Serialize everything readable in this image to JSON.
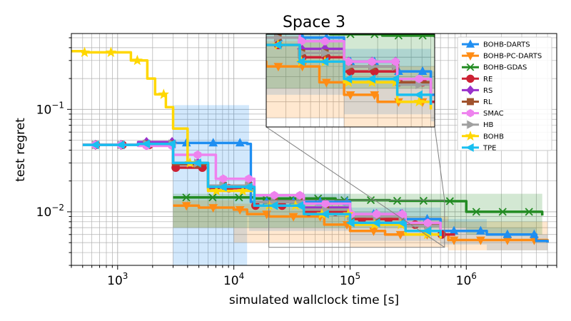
{
  "chart_data": {
    "type": "line",
    "title": "Space 3",
    "xlabel": "simulated wallclock time [s]",
    "ylabel": "test regret",
    "xscale": "log",
    "yscale": "log",
    "xlim": [
      400,
      6000000
    ],
    "ylim": [
      0.003,
      0.55
    ],
    "grid": "both-major-and-minor",
    "legend_position": "top-right",
    "xticks": [
      {
        "value": 1000,
        "base": "10",
        "exp": "3"
      },
      {
        "value": 10000,
        "base": "10",
        "exp": "4"
      },
      {
        "value": 100000,
        "base": "10",
        "exp": "5"
      },
      {
        "value": 1000000,
        "base": "10",
        "exp": "6"
      }
    ],
    "yticks": [
      {
        "value": 0.1,
        "base": "10",
        "exp": "−1"
      },
      {
        "value": 0.01,
        "base": "10",
        "exp": "−2"
      }
    ],
    "inset": {
      "description": "zoomed view",
      "xlim": [
        20000,
        650000
      ],
      "ylim": [
        0.0045,
        0.013
      ]
    },
    "series": [
      {
        "name": "BOHB-DARTS",
        "color": "#1f8ef1",
        "marker": "triangle-up",
        "x": [
          3000,
          10000,
          13000,
          14000,
          100000,
          300000,
          600000,
          1500000,
          4000000,
          5000000
        ],
        "y": [
          0.047,
          0.047,
          0.046,
          0.0125,
          0.0095,
          0.0085,
          0.0065,
          0.006,
          0.0052,
          0.005
        ],
        "band": {
          "x": [
            3000,
            13000,
            13500,
            100000,
            600000,
            1500000,
            4000000,
            5000000
          ],
          "upper": [
            0.11,
            0.11,
            0.015,
            0.011,
            0.0085,
            0.007,
            0.006,
            0.006
          ],
          "lower": [
            0.003,
            0.003,
            0.009,
            0.0065,
            0.0052,
            0.0048,
            0.0042,
            0.0042
          ]
        }
      },
      {
        "name": "BOHB-PC-DARTS",
        "color": "#ff8c14",
        "marker": "triangle-down",
        "x": [
          3000,
          5000,
          10000,
          13000,
          20000,
          60000,
          100000,
          200000,
          700000,
          5000000
        ],
        "y": [
          0.0115,
          0.011,
          0.0105,
          0.0095,
          0.009,
          0.0075,
          0.0065,
          0.006,
          0.0053,
          0.005
        ],
        "band": {
          "x": [
            3000,
            10000,
            100000,
            700000,
            5000000
          ],
          "upper": [
            0.013,
            0.012,
            0.009,
            0.008,
            0.006
          ],
          "lower": [
            0.008,
            0.007,
            0.005,
            0.0045,
            0.0042
          ]
        }
      },
      {
        "name": "BOHB-GDAS",
        "color": "#228b22",
        "marker": "x",
        "x": [
          3000,
          15000,
          30000,
          75000,
          220000,
          650000,
          900000,
          1000000,
          1400000,
          4000000,
          4500000
        ],
        "y": [
          0.0138,
          0.0135,
          0.0135,
          0.013,
          0.0128,
          0.0127,
          0.0127,
          0.01,
          0.01,
          0.01,
          0.0092
        ],
        "band": {
          "x": [
            3000,
            1000000,
            4500000
          ],
          "upper": [
            0.015,
            0.015,
            0.015
          ],
          "lower": [
            0.011,
            0.007,
            0.006
          ]
        }
      },
      {
        "name": "RE",
        "color": "#cc2133",
        "marker": "circle",
        "x": [
          500,
          1500,
          3000,
          6000,
          15000,
          40000,
          100000,
          300000,
          600000,
          800000
        ],
        "y": [
          0.045,
          0.045,
          0.027,
          0.017,
          0.0115,
          0.01,
          0.0085,
          0.0075,
          0.006,
          0.006
        ]
      },
      {
        "name": "RS",
        "color": "#9932cc",
        "marker": "diamond",
        "x": [
          500,
          1500,
          3000,
          6000,
          15000,
          40000,
          100000,
          300000,
          600000
        ],
        "y": [
          0.045,
          0.048,
          0.03,
          0.018,
          0.0125,
          0.011,
          0.0095,
          0.0075,
          0.0065
        ]
      },
      {
        "name": "RL",
        "color": "#a0522d",
        "marker": "square",
        "x": [
          500,
          1500,
          3000,
          6000,
          15000,
          40000,
          100000,
          300000,
          600000
        ],
        "y": [
          0.045,
          0.046,
          0.029,
          0.018,
          0.0125,
          0.0105,
          0.009,
          0.0075,
          0.0065
        ]
      },
      {
        "name": "SMAC",
        "color": "#ee82ee",
        "marker": "hexagon",
        "x": [
          500,
          1500,
          3000,
          7000,
          15000,
          40000,
          100000,
          300000,
          600000
        ],
        "y": [
          0.045,
          0.044,
          0.036,
          0.021,
          0.0145,
          0.012,
          0.0095,
          0.0078,
          0.0065
        ]
      },
      {
        "name": "HB",
        "color": "#a0a0a0",
        "marker": "triangle-right",
        "x": [
          500,
          1500,
          3000,
          6000,
          15000,
          40000,
          100000,
          300000,
          600000
        ],
        "y": [
          0.045,
          0.046,
          0.03,
          0.018,
          0.0125,
          0.0105,
          0.009,
          0.0073,
          0.006
        ]
      },
      {
        "name": "BOHB",
        "color": "#ffd700",
        "marker": "star",
        "x": [
          400,
          500,
          1300,
          1800,
          2100,
          2600,
          3000,
          4000,
          6000,
          15000,
          40000,
          100000,
          300000,
          600000
        ],
        "y": [
          0.37,
          0.36,
          0.3,
          0.2,
          0.14,
          0.105,
          0.065,
          0.03,
          0.016,
          0.0115,
          0.0095,
          0.0075,
          0.006,
          0.0055
        ]
      },
      {
        "name": "TPE",
        "color": "#19bff0",
        "marker": "triangle-left",
        "x": [
          500,
          1500,
          3000,
          6000,
          15000,
          40000,
          100000,
          300000,
          600000
        ],
        "y": [
          0.045,
          0.046,
          0.03,
          0.0175,
          0.0115,
          0.0095,
          0.0078,
          0.0065,
          0.0058
        ]
      }
    ]
  }
}
